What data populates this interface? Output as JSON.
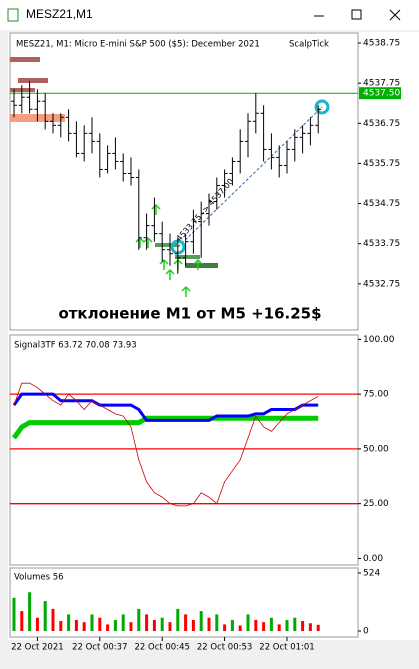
{
  "window": {
    "title": "MESZ21,M1"
  },
  "chart_data": [
    {
      "type": "ohlc",
      "header": "MESZ21, M1:  Micro E-mini S&P 500 ($5): December 2021",
      "indicator_name": "ScalpTick",
      "annotation": "отклонение M1 от M5 +16.25$",
      "trend_label": "4533.75 -> 4537.00",
      "bar_color": "#000000",
      "ylim": [
        4531.6,
        4539.0
      ],
      "yticks": [
        4538.75,
        4537.75,
        4536.75,
        4535.75,
        4534.75,
        4533.75,
        4532.75
      ],
      "level": {
        "value": 4537.5,
        "label": "4537.50"
      },
      "level_color": "#00b000",
      "categories": [
        null,
        null,
        null,
        "22 Oct 2021",
        null,
        null,
        null,
        null,
        null,
        null,
        null,
        "22 Oct 00:37",
        null,
        null,
        null,
        null,
        null,
        null,
        null,
        "22 Oct 00:45",
        null,
        null,
        null,
        null,
        null,
        null,
        null,
        "22 Oct 00:53",
        null,
        null,
        null,
        null,
        null,
        null,
        null,
        "22 Oct 01:01",
        null,
        null,
        null,
        null
      ],
      "open": [
        4537.3,
        4537.2,
        4537.4,
        4537.1,
        4537.3,
        4536.8,
        4536.7,
        4536.9,
        4536.5,
        4536.0,
        4536.5,
        4536.3,
        4535.6,
        4536.0,
        4535.8,
        4535.5,
        4535.4,
        4533.9,
        4534.2,
        4534.0,
        4533.6,
        4533.5,
        4533.4,
        4533.8,
        4534.3,
        4534.5,
        4534.8,
        4535.2,
        4535.5,
        4535.8,
        4536.3,
        4536.8,
        4537.0,
        4536.1,
        4535.9,
        4535.7,
        4536.1,
        4536.4,
        4536.5,
        4536.7
      ],
      "high": [
        4537.6,
        4537.7,
        4537.8,
        4537.6,
        4537.5,
        4537.0,
        4537.0,
        4537.1,
        4536.8,
        4536.7,
        4536.9,
        4536.5,
        4536.2,
        4536.4,
        4536.0,
        4535.9,
        4535.6,
        4534.5,
        4534.9,
        4534.3,
        4534.0,
        4533.9,
        4534.0,
        4534.6,
        4534.8,
        4535.0,
        4535.4,
        4535.6,
        4535.9,
        4536.6,
        4537.0,
        4537.5,
        4537.2,
        4536.5,
        4536.2,
        4536.3,
        4536.6,
        4536.7,
        4536.9,
        4537.2
      ],
      "low": [
        4536.9,
        4537.0,
        4537.0,
        4536.8,
        4536.6,
        4536.5,
        4536.4,
        4536.3,
        4535.9,
        4535.8,
        4536.0,
        4535.4,
        4535.5,
        4535.6,
        4535.3,
        4535.2,
        4533.6,
        4533.6,
        4533.8,
        4533.3,
        4533.2,
        4533.0,
        4533.2,
        4533.5,
        4533.4,
        4534.2,
        4534.6,
        4534.9,
        4535.2,
        4535.5,
        4535.9,
        4536.5,
        4535.8,
        4535.6,
        4535.4,
        4535.5,
        4535.8,
        4536.0,
        4536.2,
        4536.5
      ],
      "close": [
        4537.2,
        4537.4,
        4537.1,
        4537.3,
        4536.8,
        4536.7,
        4536.9,
        4536.5,
        4536.0,
        4536.5,
        4536.3,
        4535.6,
        4536.0,
        4535.8,
        4535.5,
        4535.4,
        4533.9,
        4534.2,
        4534.0,
        4533.6,
        4533.5,
        4533.4,
        4533.8,
        4534.3,
        4534.5,
        4534.8,
        4535.2,
        4535.5,
        4535.8,
        4536.3,
        4536.8,
        4537.0,
        4536.1,
        4535.9,
        4535.7,
        4536.1,
        4536.4,
        4536.5,
        4536.7,
        4537.1
      ]
    },
    {
      "type": "line",
      "title": "Signal3TF 63.72 70.08 73.93",
      "ylim": [
        -3,
        102
      ],
      "yticks": [
        {
          "value": 100,
          "label": "100.00"
        },
        {
          "value": 75,
          "label": "75.00"
        },
        {
          "value": 50,
          "label": "50.00"
        },
        {
          "value": 25,
          "label": "25.00"
        },
        {
          "value": 0,
          "label": "0.00"
        }
      ],
      "levels": [
        75,
        50,
        25
      ],
      "level_color": "#ff0000",
      "series": [
        {
          "color": "#00cc00",
          "width": 5,
          "values": [
            55,
            60,
            62,
            62,
            62,
            62,
            62,
            62,
            62,
            62,
            62,
            62,
            62,
            62,
            62,
            62,
            62,
            64,
            64,
            64,
            64,
            64,
            64,
            64,
            64,
            64,
            64,
            64,
            64,
            64,
            64,
            64,
            64,
            64,
            64,
            64,
            64,
            64,
            64,
            64
          ]
        },
        {
          "color": "#0000ff",
          "width": 3,
          "values": [
            70,
            75,
            75,
            75,
            75,
            75,
            72,
            72,
            72,
            72,
            72,
            70,
            70,
            70,
            70,
            70,
            68,
            63,
            63,
            63,
            63,
            63,
            63,
            63,
            63,
            63,
            65,
            65,
            65,
            65,
            65,
            66,
            66,
            68,
            68,
            68,
            68,
            70,
            70,
            70
          ]
        },
        {
          "color": "#cc0000",
          "width": 0.8,
          "values": [
            70,
            80,
            80,
            78,
            75,
            72,
            70,
            75,
            72,
            68,
            72,
            70,
            68,
            66,
            65,
            60,
            45,
            35,
            30,
            28,
            25,
            24,
            24,
            25,
            30,
            28,
            25,
            35,
            40,
            45,
            55,
            65,
            60,
            58,
            62,
            66,
            68,
            70,
            72,
            74
          ]
        }
      ]
    },
    {
      "type": "bar",
      "title": "Volumes 56",
      "ylim": [
        -54,
        569
      ],
      "yticks": [
        524,
        0
      ],
      "up_color": "#00aa00",
      "down_color": "#ff0000",
      "values": [
        300,
        180,
        350,
        120,
        270,
        200,
        90,
        150,
        100,
        80,
        150,
        120,
        60,
        100,
        150,
        80,
        200,
        150,
        100,
        120,
        80,
        200,
        150,
        100,
        180,
        120,
        150,
        60,
        100,
        50,
        150,
        100,
        80,
        120,
        60,
        100,
        120,
        90,
        70,
        56
      ]
    }
  ]
}
